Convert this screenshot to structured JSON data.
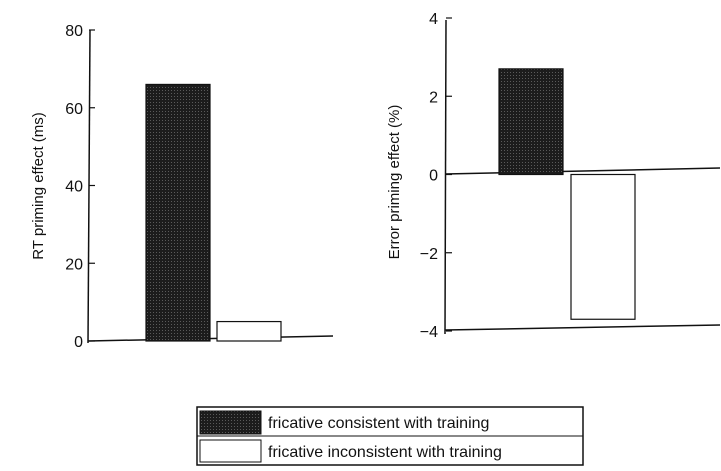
{
  "chart_data": [
    {
      "type": "bar",
      "title": "",
      "xlabel": "",
      "ylabel": "RT priming effect (ms)",
      "ylim": [
        0,
        80
      ],
      "yticks": [
        0,
        20,
        40,
        60,
        80
      ],
      "grid": false,
      "series": [
        {
          "name": "fricative consistent with training",
          "values": [
            66
          ]
        },
        {
          "name": "fricative inconsistent with training",
          "values": [
            5
          ]
        }
      ]
    },
    {
      "type": "bar",
      "title": "",
      "xlabel": "",
      "ylabel": "Error priming effect (%)",
      "ylim": [
        -4,
        4
      ],
      "yticks": [
        -4,
        -2,
        0,
        2,
        4
      ],
      "grid": false,
      "series": [
        {
          "name": "fricative consistent with training",
          "values": [
            2.7
          ]
        },
        {
          "name": "fricative inconsistent with training",
          "values": [
            -3.7
          ]
        }
      ]
    }
  ],
  "legend": {
    "placement": "bottom-center",
    "items": [
      {
        "label": "fricative consistent with training",
        "color": "#1a1a1a"
      },
      {
        "label": "fricative inconsistent with training",
        "color": "#ffffff"
      }
    ]
  },
  "colors": {
    "dark_bar": "#1a1a1a",
    "light_bar": "#ffffff",
    "axis": "#111111"
  }
}
